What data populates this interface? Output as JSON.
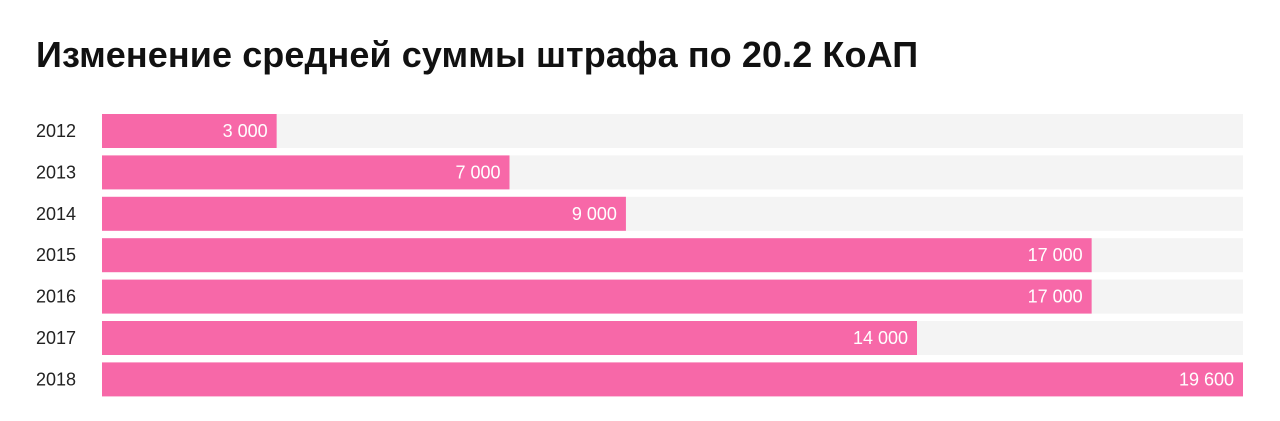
{
  "chart_data": {
    "type": "bar",
    "orientation": "horizontal",
    "title": "Изменение средней суммы штрафа по 20.2 КоАП",
    "xlabel": "",
    "ylabel": "",
    "categories": [
      "2012",
      "2013",
      "2014",
      "2015",
      "2016",
      "2017",
      "2018"
    ],
    "values": [
      3000,
      7000,
      9000,
      17000,
      17000,
      14000,
      19600
    ],
    "value_labels": [
      "3 000",
      "7 000",
      "9 000",
      "17 000",
      "17 000",
      "14 000",
      "19 600"
    ],
    "xlim": [
      0,
      19600
    ],
    "grid": false,
    "legend": "none",
    "colors": {
      "bar": "#f768a8",
      "track": "#f4f4f4",
      "label": "#ffffff",
      "category": "#222222"
    }
  }
}
